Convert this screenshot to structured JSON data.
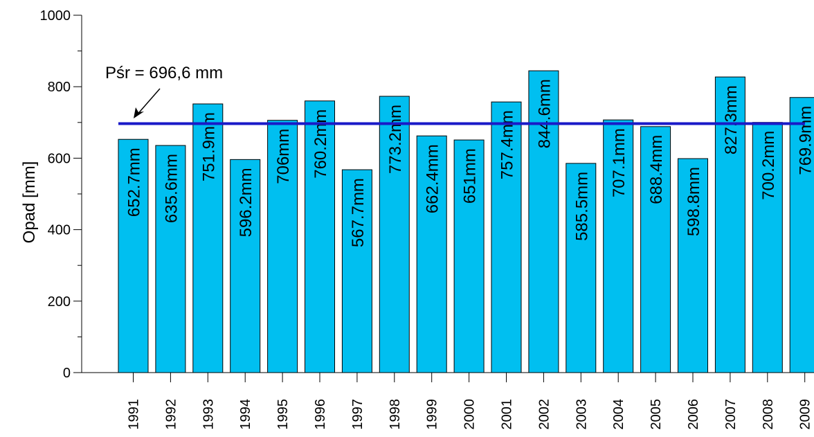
{
  "chart_data": {
    "type": "bar",
    "title": "",
    "xlabel": "",
    "ylabel": "Opad [mm]",
    "ylim": [
      0,
      1000
    ],
    "y_ticks": [
      "0",
      "200",
      "400",
      "600",
      "800",
      "1000"
    ],
    "grid": false,
    "legend": "none",
    "bar_color": "#00BFF0",
    "mean_line_color": "#1A1AC8",
    "categories": [
      "1991",
      "1992",
      "1993",
      "1994",
      "1995",
      "1996",
      "1997",
      "1998",
      "1999",
      "2000",
      "2001",
      "2002",
      "2003",
      "2004",
      "2005",
      "2006",
      "2007",
      "2008",
      "2009"
    ],
    "values": [
      652.7,
      635.6,
      751.9,
      596.2,
      706,
      760.2,
      567.7,
      773.2,
      662.4,
      651,
      757.4,
      844.6,
      585.5,
      707.1,
      688.4,
      598.8,
      827.3,
      700.2,
      769.9
    ],
    "data_labels": [
      "652.7mm",
      "635.6mm",
      "751.9mm",
      "596.2mm",
      "706mm",
      "760.2mm",
      "567.7mm",
      "773.2mm",
      "662.4mm",
      "651mm",
      "757.4mm",
      "844.6mm",
      "585.5mm",
      "707.1mm",
      "688.4mm",
      "598.8mm",
      "827.3mm",
      "700.2mm",
      "769.9mm"
    ],
    "mean_line": {
      "value": 696.6,
      "annotation": "Pśr = 696,6 mm"
    }
  }
}
